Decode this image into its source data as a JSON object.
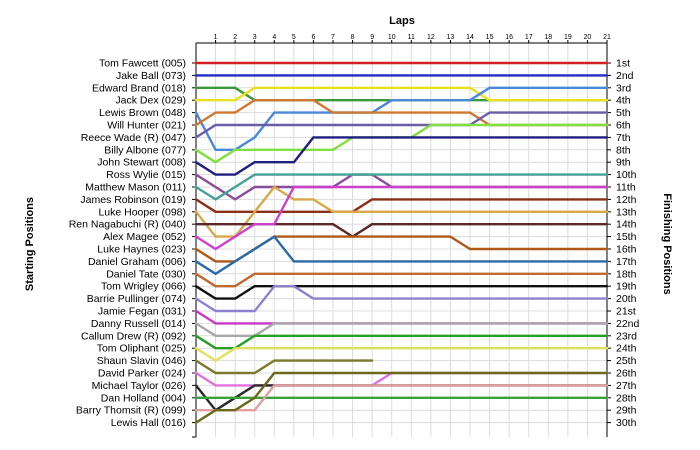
{
  "chart_data": {
    "type": "line",
    "title": "Laps",
    "ylabel_left": "Starting Positions",
    "ylabel_right": "Finishing Positions",
    "laps": [
      "1",
      "2",
      "3",
      "4",
      "5",
      "6",
      "7",
      "8",
      "9",
      "10",
      "11",
      "12",
      "13",
      "14",
      "15",
      "16",
      "17",
      "18",
      "19",
      "20",
      "21"
    ],
    "drivers": [
      "Tom Fawcett (005)",
      "Jake Ball (073)",
      "Edward Brand (018)",
      "Jack Dex (029)",
      "Lewis Brown (048)",
      "Will Hunter (021)",
      "Reece Wade   (R) (047)",
      "Billy Albone (077)",
      "John Stewart (008)",
      "Ross Wylie (015)",
      "Matthew Mason (011)",
      "James Robinson (019)",
      "Luke Hooper (098)",
      "Ren Nagabuchi  (R) (040)",
      "Alex Magee (052)",
      "Luke Haynes (023)",
      "Daniel Graham (006)",
      "Daniel Tate (030)",
      "Tom Wrigley (066)",
      "Barrie Pullinger (074)",
      "Jamie Fegan (031)",
      "Danny Russell (014)",
      "Callum Drew (R) (092)",
      "Tom Oliphant (025)",
      "Shaun Slavin (046)",
      "David Parker (024)",
      "Michael Taylor (026)",
      "Dan Holland (004)",
      "Barry Thomsit  (R) (099)",
      "Lewis Hall (016)"
    ],
    "finishing_positions": [
      "1st",
      "2nd",
      "3rd",
      "4th",
      "5th",
      "6th",
      "7th",
      "8th",
      "9th",
      "10th",
      "11th",
      "12th",
      "13th",
      "14th",
      "15th",
      "16th",
      "17th",
      "18th",
      "19th",
      "20th",
      "21st",
      "22nd",
      "23rd",
      "24th",
      "25th",
      "26th",
      "27th",
      "28th",
      "29th",
      "30th"
    ],
    "series": [
      {
        "color": "#d42020",
        "positions": [
          1,
          1,
          1,
          1,
          1,
          1,
          1,
          1,
          1,
          1,
          1,
          1,
          1,
          1,
          1,
          1,
          1,
          1,
          1,
          1,
          1,
          1
        ]
      },
      {
        "color": "#1d2ec4",
        "positions": [
          2,
          2,
          2,
          2,
          2,
          2,
          2,
          2,
          2,
          2,
          2,
          2,
          2,
          2,
          2,
          2,
          2,
          2,
          2,
          2,
          2,
          2
        ]
      },
      {
        "color": "#3a9a3a",
        "positions": [
          3,
          3,
          3,
          4,
          4,
          4,
          4,
          4,
          4,
          4,
          4,
          4,
          4,
          4,
          4,
          4,
          4,
          4,
          4,
          4,
          4,
          4
        ]
      },
      {
        "color": "#e8e020",
        "positions": [
          4,
          4,
          4,
          3,
          3,
          3,
          3,
          3,
          3,
          3,
          3,
          3,
          3,
          3,
          3,
          4,
          4,
          4,
          4,
          4,
          4,
          4
        ]
      },
      {
        "color": "#4a88d8",
        "positions": [
          5,
          8,
          8,
          7,
          5,
          5,
          5,
          5,
          5,
          5,
          4,
          4,
          4,
          4,
          4,
          3,
          3,
          3,
          3,
          3,
          3,
          3
        ]
      },
      {
        "color": "#d07830",
        "positions": [
          6,
          5,
          5,
          4,
          4,
          4,
          4,
          5,
          5,
          5,
          5,
          5,
          5,
          5,
          5,
          6,
          6,
          6,
          6,
          6,
          6,
          6
        ]
      },
      {
        "color": "#6c5da8",
        "positions": [
          7,
          6,
          6,
          6,
          6,
          6,
          6,
          6,
          6,
          6,
          6,
          6,
          6,
          6,
          6,
          5,
          5,
          5,
          5,
          5,
          5,
          5
        ]
      },
      {
        "color": "#80e040",
        "positions": [
          8,
          9,
          8,
          8,
          8,
          8,
          8,
          8,
          7,
          7,
          7,
          7,
          6,
          6,
          6,
          6,
          6,
          6,
          6,
          6,
          6,
          6
        ]
      },
      {
        "color": "#202080",
        "positions": [
          9,
          10,
          10,
          9,
          9,
          9,
          7,
          7,
          7,
          7,
          7,
          7,
          7,
          7,
          7,
          7,
          7,
          7,
          7,
          7,
          7,
          7
        ]
      },
      {
        "color": "#8a4c9a",
        "positions": [
          10,
          11,
          12,
          11,
          11,
          11,
          11,
          11,
          10,
          10,
          11,
          11,
          11,
          11,
          11,
          11,
          11,
          11,
          11,
          11,
          11,
          11
        ]
      },
      {
        "color": "#46a098",
        "positions": [
          11,
          12,
          11,
          10,
          10,
          10,
          10,
          10,
          10,
          10,
          10,
          10,
          10,
          10,
          10,
          10,
          10,
          10,
          10,
          10,
          10,
          10
        ]
      },
      {
        "color": "#8a3018",
        "positions": [
          12,
          13,
          13,
          13,
          13,
          13,
          13,
          13,
          13,
          12,
          12,
          12,
          12,
          12,
          12,
          12,
          12,
          12,
          12,
          12,
          12,
          12
        ]
      },
      {
        "color": "#d8a848",
        "positions": [
          13,
          15,
          15,
          13,
          11,
          12,
          12,
          13,
          13,
          13,
          13,
          13,
          13,
          13,
          13,
          13,
          13,
          13,
          13,
          13,
          13,
          13
        ]
      },
      {
        "color": "#5a2a2a",
        "positions": [
          14,
          14,
          14,
          14,
          14,
          14,
          14,
          14,
          15,
          14,
          14,
          14,
          14,
          14,
          14,
          14,
          14,
          14,
          14,
          14,
          14,
          14
        ]
      },
      {
        "color": "#cc40cc",
        "positions": [
          15,
          16,
          15,
          14,
          14,
          11,
          11,
          11,
          11,
          11,
          11,
          11,
          11,
          11,
          11,
          11,
          11,
          11,
          11,
          11,
          11,
          11
        ]
      },
      {
        "color": "#b05818",
        "positions": [
          16,
          17,
          17,
          16,
          15,
          15,
          15,
          15,
          15,
          15,
          15,
          15,
          15,
          15,
          16,
          16,
          16,
          16,
          16,
          16,
          16,
          16
        ]
      },
      {
        "color": "#2a6aa8",
        "positions": [
          17,
          18,
          17,
          16,
          15,
          17,
          17,
          17,
          17,
          17,
          17,
          17,
          17,
          17,
          17,
          17,
          17,
          17,
          17,
          17,
          17,
          17
        ]
      },
      {
        "color": "#c06a30",
        "positions": [
          18,
          19,
          19,
          18,
          18,
          18,
          18,
          18,
          18,
          18,
          18,
          18,
          18,
          18,
          18,
          18,
          18,
          18,
          18,
          18,
          18,
          18
        ]
      },
      {
        "color": "#111111",
        "positions": [
          19,
          20,
          20,
          19,
          19,
          19,
          19,
          19,
          19,
          19,
          19,
          19,
          19,
          19,
          19,
          19,
          19,
          19,
          19,
          19,
          19,
          19
        ]
      },
      {
        "color": "#9080d0",
        "positions": [
          20,
          21,
          21,
          21,
          19,
          19,
          20,
          20,
          20,
          20,
          20,
          20,
          20,
          20,
          20,
          20,
          20,
          20,
          20,
          20,
          20,
          20
        ]
      },
      {
        "color": "#c838c8",
        "positions": [
          21,
          22,
          22,
          22,
          22,
          22,
          22,
          22,
          22,
          22,
          22,
          22,
          22,
          22,
          22,
          22,
          22,
          22,
          22,
          22,
          22,
          22
        ]
      },
      {
        "color": "#a8a8a8",
        "positions": [
          22,
          23,
          23,
          23,
          22,
          22,
          22,
          22,
          22,
          22,
          22,
          22,
          22,
          22,
          22,
          22,
          22,
          22,
          22,
          22,
          22,
          22
        ]
      },
      {
        "color": "#28a028",
        "positions": [
          23,
          24,
          24,
          23,
          23,
          23,
          23,
          23,
          23,
          23,
          23,
          23,
          23,
          23,
          23,
          23,
          23,
          23,
          23,
          23,
          23,
          23
        ]
      },
      {
        "color": "#e0e060",
        "positions": [
          24,
          25,
          24,
          24,
          24,
          24,
          24,
          24,
          24,
          24,
          24,
          24,
          24,
          24,
          24,
          24,
          24,
          24,
          24,
          24,
          24,
          24
        ]
      },
      {
        "color": "#7a7a2a",
        "positions": [
          25,
          26,
          26,
          26,
          25,
          25,
          25,
          25,
          25,
          25
        ]
      },
      {
        "color": "#e070e0",
        "positions": [
          26,
          27,
          27,
          27,
          27,
          27,
          27,
          27,
          27,
          27,
          26,
          26,
          26,
          26,
          26,
          26,
          26,
          26,
          26,
          26,
          26
        ]
      },
      {
        "color": "#2a2a2a",
        "positions": [
          27,
          29,
          28,
          27,
          27,
          27,
          27,
          27,
          27,
          27,
          27,
          27,
          27,
          27,
          27,
          27,
          27,
          27,
          27,
          27,
          27,
          27
        ]
      },
      {
        "color": "#3aa03a",
        "positions": [
          28,
          28,
          28,
          28,
          28,
          28,
          28,
          28,
          28,
          28,
          28,
          28,
          28,
          28,
          28,
          28,
          28,
          28,
          28,
          28,
          28,
          28
        ]
      },
      {
        "color": "#e0a0a0",
        "positions": [
          29,
          29,
          29,
          29,
          27,
          27,
          27,
          27,
          27,
          27,
          27,
          27,
          27,
          27,
          27,
          27,
          27,
          27,
          27,
          27,
          27,
          27
        ]
      },
      {
        "color": "#6a6a1a",
        "positions": [
          30,
          29,
          29,
          28,
          26,
          26,
          26,
          26,
          26,
          26,
          26,
          26,
          26,
          26,
          26,
          26,
          26,
          26,
          26,
          26,
          26,
          26
        ]
      }
    ]
  }
}
